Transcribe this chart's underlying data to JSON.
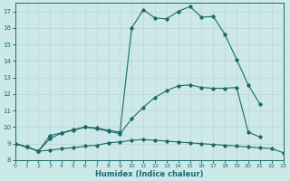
{
  "xlabel": "Humidex (Indice chaleur)",
  "xlim": [
    0,
    23
  ],
  "ylim": [
    8,
    17.5
  ],
  "yticks": [
    8,
    9,
    10,
    11,
    12,
    13,
    14,
    15,
    16,
    17
  ],
  "xticks": [
    0,
    1,
    2,
    3,
    4,
    5,
    6,
    7,
    8,
    9,
    10,
    11,
    12,
    13,
    14,
    15,
    16,
    17,
    18,
    19,
    20,
    21,
    22,
    23
  ],
  "bg_color": "#cde8e8",
  "line_color": "#1a6b6b",
  "grid_color": "#c0d8d8",
  "line1_x": [
    0,
    1,
    2,
    3,
    4,
    5,
    6,
    7,
    8,
    9,
    10,
    11,
    12,
    13,
    14,
    15,
    16,
    17,
    18,
    19,
    20,
    21,
    22,
    23
  ],
  "line1_y": [
    9.0,
    8.8,
    8.55,
    8.6,
    8.7,
    8.75,
    8.85,
    8.9,
    9.05,
    9.1,
    9.2,
    9.25,
    9.2,
    9.15,
    9.1,
    9.05,
    9.0,
    8.95,
    8.9,
    8.85,
    8.8,
    8.75,
    8.7,
    8.45
  ],
  "line2_x": [
    0,
    1,
    2,
    3,
    4,
    5,
    6,
    7,
    8,
    9,
    10,
    11,
    12,
    13,
    14,
    15,
    16,
    17,
    18,
    19,
    20,
    21
  ],
  "line2_y": [
    9.0,
    8.8,
    8.55,
    9.3,
    9.65,
    9.8,
    10.0,
    9.9,
    9.75,
    9.6,
    10.5,
    11.2,
    11.8,
    12.2,
    12.5,
    12.55,
    12.4,
    12.35,
    12.35,
    12.4,
    9.7,
    9.4
  ],
  "line3_x": [
    0,
    1,
    2,
    3,
    4,
    5,
    6,
    7,
    8,
    9,
    10,
    11,
    12,
    13,
    14,
    15,
    16,
    17,
    18,
    19,
    20,
    21
  ],
  "line3_y": [
    9.0,
    8.8,
    8.55,
    9.5,
    9.65,
    9.85,
    10.0,
    9.95,
    9.8,
    9.7,
    16.0,
    17.1,
    16.6,
    16.55,
    17.0,
    17.3,
    16.65,
    16.7,
    15.6,
    14.1,
    12.55,
    11.4
  ]
}
